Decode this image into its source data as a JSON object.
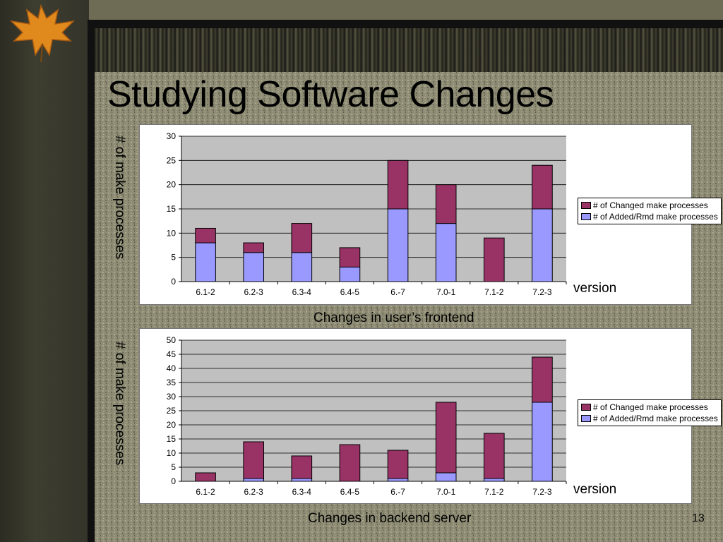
{
  "slide": {
    "title": "Studying Software Changes",
    "page_number": "13"
  },
  "colors": {
    "changed": "#993366",
    "added": "#9999ff",
    "plot_bg": "#c0c0c0"
  },
  "charts": [
    {
      "ylabel": "# of make processes",
      "xlabel_side": "version",
      "caption": "Changes in user’s frontend",
      "legend": [
        "# of Changed make processes",
        "# of Added/Rmd make processes"
      ]
    },
    {
      "ylabel": "# of make processes",
      "xlabel_side": "version",
      "caption": "Changes in backend server",
      "legend": [
        "# of Changed make processes",
        "# of Added/Rmd make processes"
      ]
    }
  ],
  "chart_data": [
    {
      "type": "bar",
      "stacked": true,
      "title": "Changes in user’s frontend",
      "xlabel": "version",
      "ylabel": "# of make processes",
      "categories": [
        "6.1-2",
        "6.2-3",
        "6.3-4",
        "6.4-5",
        "6.-7",
        "7.0-1",
        "7.1-2",
        "7.2-3"
      ],
      "series": [
        {
          "name": "# of Added/Rmd make processes",
          "values": [
            8,
            6,
            6,
            3,
            15,
            12,
            0,
            15
          ]
        },
        {
          "name": "# of Changed make processes",
          "values": [
            3,
            2,
            6,
            4,
            10,
            8,
            9,
            9
          ]
        }
      ],
      "ylim": [
        0,
        30
      ],
      "yticks": [
        0,
        5,
        10,
        15,
        20,
        25,
        30
      ],
      "grid": true,
      "legend_position": "right"
    },
    {
      "type": "bar",
      "stacked": true,
      "title": "Changes in backend server",
      "xlabel": "version",
      "ylabel": "# of make processes",
      "categories": [
        "6.1-2",
        "6.2-3",
        "6.3-4",
        "6.4-5",
        "6.-7",
        "7.0-1",
        "7.1-2",
        "7.2-3"
      ],
      "series": [
        {
          "name": "# of Added/Rmd make processes",
          "values": [
            0,
            1,
            1,
            0,
            1,
            3,
            1,
            28
          ]
        },
        {
          "name": "# of Changed make processes",
          "values": [
            3,
            13,
            8,
            13,
            10,
            25,
            16,
            16
          ]
        }
      ],
      "ylim": [
        0,
        50
      ],
      "yticks": [
        0,
        5,
        10,
        15,
        20,
        25,
        30,
        35,
        40,
        45,
        50
      ],
      "grid": true,
      "legend_position": "right"
    }
  ]
}
